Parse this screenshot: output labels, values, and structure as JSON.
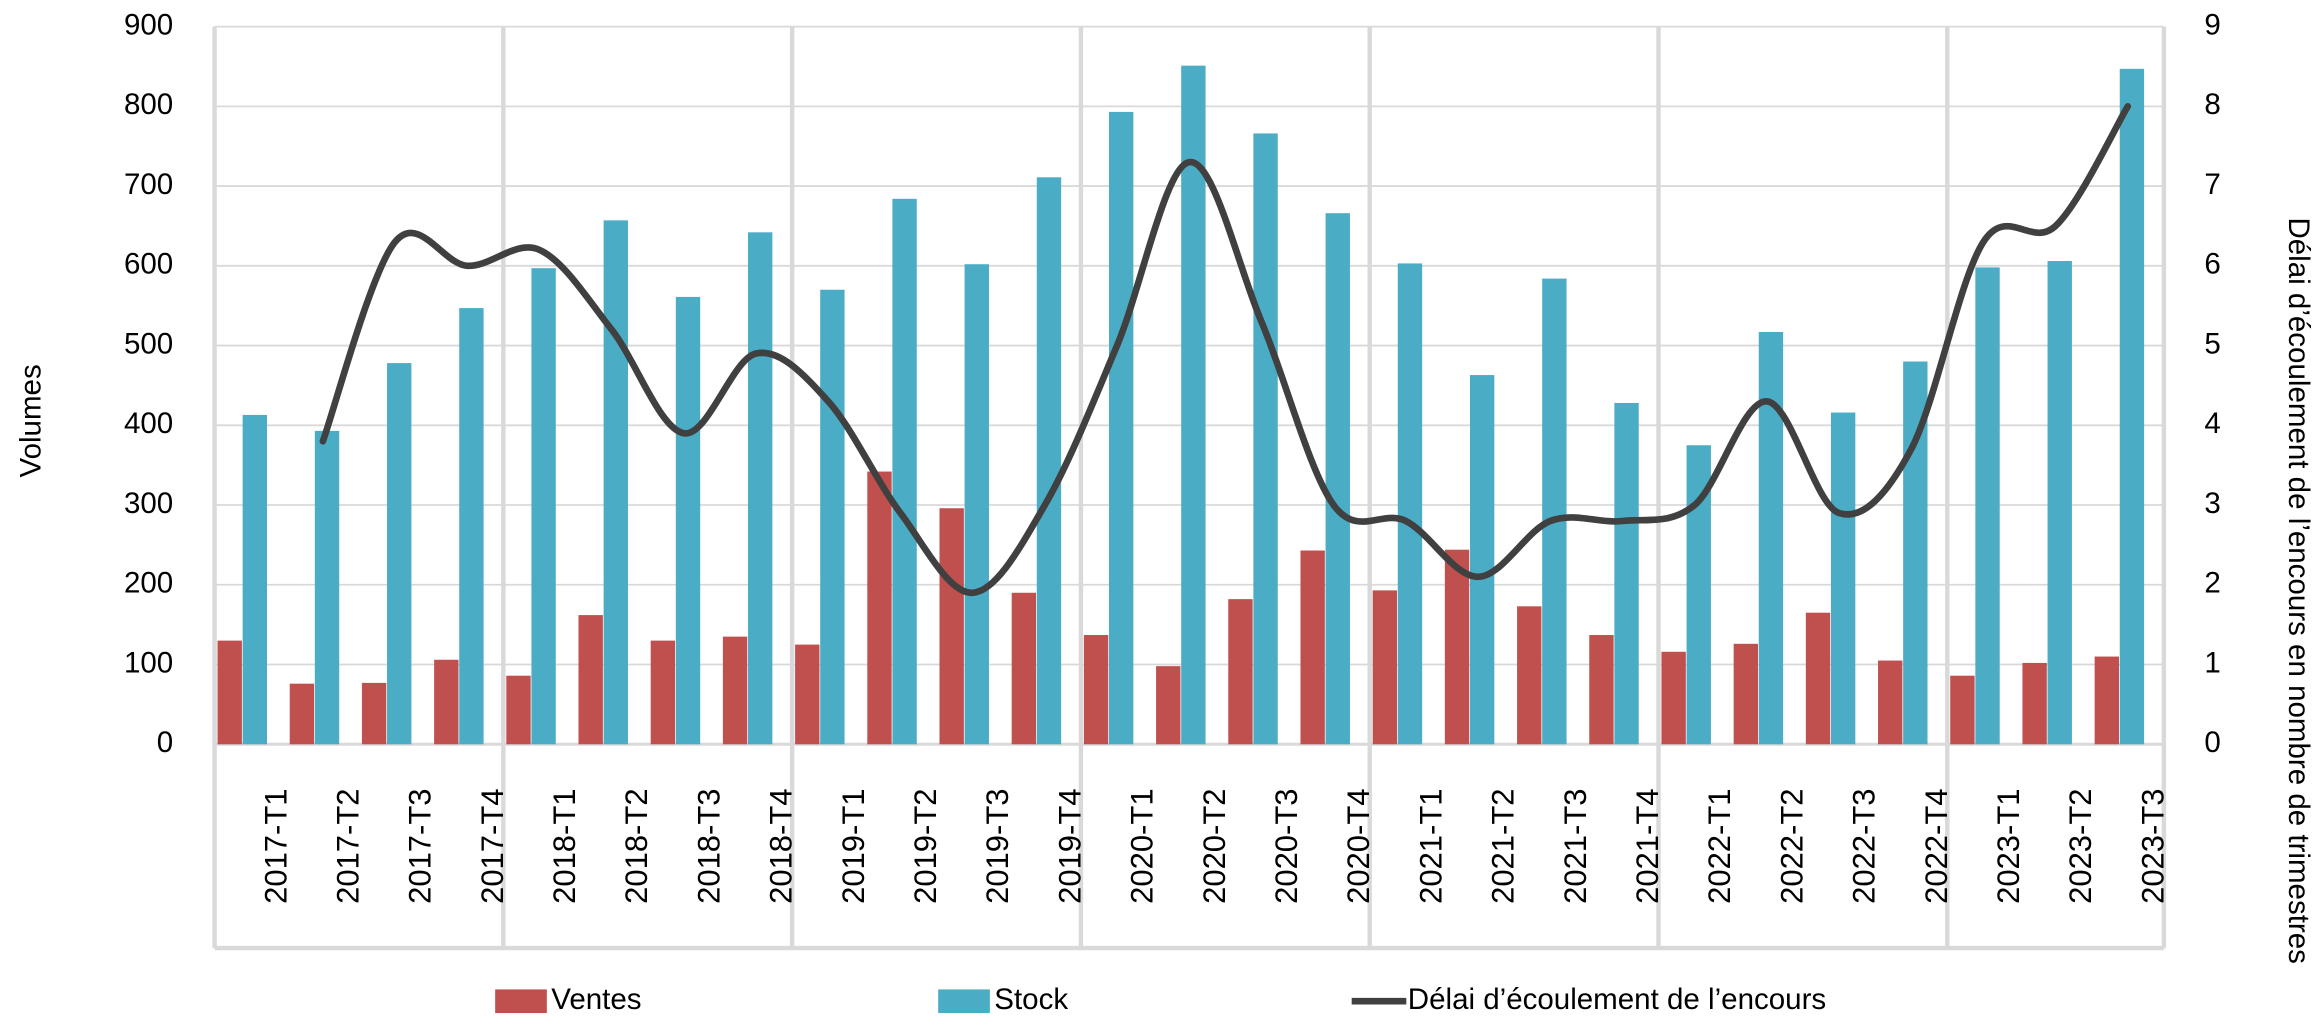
{
  "chart_data": {
    "type": "bar",
    "categories": [
      "2017-T1",
      "2017-T2",
      "2017-T3",
      "2017-T4",
      "2018-T1",
      "2018-T2",
      "2018-T3",
      "2018-T4",
      "2019-T1",
      "2019-T2",
      "2019-T3",
      "2019-T4",
      "2020-T1",
      "2020-T2",
      "2020-T3",
      "2020-T4",
      "2021-T1",
      "2021-T2",
      "2021-T3",
      "2021-T4",
      "2022-T1",
      "2022-T2",
      "2022-T3",
      "2022-T4",
      "2023-T1",
      "2023-T2",
      "2023-T3"
    ],
    "y_label": "Volumes",
    "y2_label": "Délai d’écoulement de l’encours en nombre de trimestres",
    "series": [
      {
        "name": "Ventes",
        "color": "#c0504d",
        "values": [
          130,
          76,
          77,
          106,
          86,
          162,
          130,
          135,
          125,
          342,
          296,
          190,
          137,
          98,
          182,
          243,
          193,
          244,
          173,
          137,
          116,
          126,
          165,
          105,
          86,
          102,
          110
        ]
      },
      {
        "name": "Stock",
        "color": "#4bacc6",
        "values": [
          413,
          393,
          478,
          547,
          597,
          657,
          561,
          642,
          570,
          684,
          602,
          711,
          793,
          851,
          766,
          666,
          603,
          463,
          584,
          428,
          375,
          517,
          416,
          480,
          598,
          606,
          847
        ]
      },
      {
        "name": "Délai d’écoulement de l’encours",
        "color": "#404040",
        "axis": "y2",
        "type": "line",
        "values": [
          null,
          3.8,
          6.3,
          6.0,
          6.2,
          5.2,
          3.9,
          4.9,
          4.3,
          2.9,
          1.9,
          3.0,
          5.0,
          7.3,
          5.3,
          3.0,
          2.8,
          2.1,
          2.8,
          2.8,
          3.0,
          4.3,
          2.9,
          3.7,
          6.3,
          6.5,
          8.0
        ]
      }
    ],
    "ylim": [
      0,
      900
    ],
    "yticks": [
      0,
      100,
      200,
      300,
      400,
      500,
      600,
      700,
      800,
      900
    ],
    "y2lim": [
      0,
      9
    ],
    "y2ticks": [
      0,
      1,
      2,
      3,
      4,
      5,
      6,
      7,
      8,
      9
    ],
    "grid": true,
    "legend": "bottom"
  }
}
